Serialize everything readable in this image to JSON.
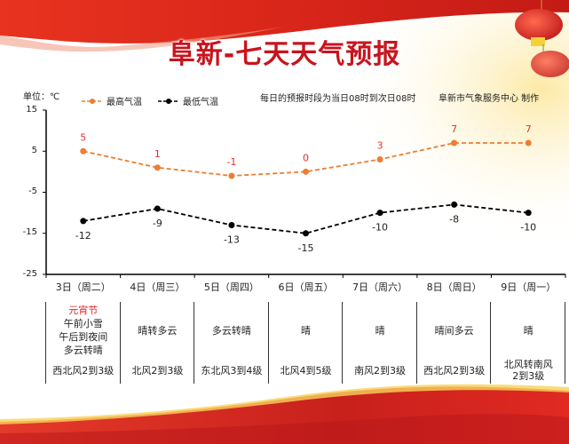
{
  "header": {
    "title": "阜新-七天天气预报"
  },
  "chart_data": {
    "type": "line",
    "title": "阜新-七天天气预报",
    "ylabel": "单位：℃",
    "ylim": [
      -25,
      15
    ],
    "yticks": [
      "15",
      "5",
      "-5",
      "-15",
      "-25"
    ],
    "categories": [
      "3日（周二）",
      "4日（周三）",
      "5日（周四）",
      "6日（周五）",
      "7日（周六）",
      "8日（周日）",
      "9日（周一）"
    ],
    "series": [
      {
        "name": "最高气温",
        "values": [
          5,
          1,
          -1,
          0,
          3,
          7,
          7
        ],
        "color": "#ed7d31",
        "style": "dashed"
      },
      {
        "name": "最低气温",
        "values": [
          -12,
          -9,
          -13,
          -15,
          -10,
          -8,
          -10
        ],
        "color": "#000000",
        "style": "dashed"
      }
    ],
    "legend_position": "top",
    "grid": false
  },
  "legend": {
    "high_label": "最高气温",
    "low_label": "最低气温"
  },
  "unit_label": "单位：℃",
  "note": "每日的预报时段为当日08时到次日08时",
  "credit": "阜新市气象服务中心 制作",
  "colors": {
    "high": "#ed7d31",
    "low": "#000000",
    "high_label": "#e03030",
    "brand_red": "#d7261e"
  },
  "days": [
    {
      "date": "3日（周二）",
      "festival": "元宵节",
      "weather": [
        "午前小雪",
        "午后到夜间",
        "多云转晴"
      ],
      "wind": [
        "西北风2到3级"
      ]
    },
    {
      "date": "4日（周三）",
      "festival": "",
      "weather": [
        "晴转多云"
      ],
      "wind": [
        "北风2到3级"
      ]
    },
    {
      "date": "5日（周四）",
      "festival": "",
      "weather": [
        "多云转晴"
      ],
      "wind": [
        "东北风3到4级"
      ]
    },
    {
      "date": "6日（周五）",
      "festival": "",
      "weather": [
        "晴"
      ],
      "wind": [
        "北风4到5级"
      ]
    },
    {
      "date": "7日（周六）",
      "festival": "",
      "weather": [
        "晴"
      ],
      "wind": [
        "南风2到3级"
      ]
    },
    {
      "date": "8日（周日）",
      "festival": "",
      "weather": [
        "晴间多云"
      ],
      "wind": [
        "西北风2到3级"
      ]
    },
    {
      "date": "9日（周一）",
      "festival": "",
      "weather": [
        "晴"
      ],
      "wind": [
        "北风转南风",
        "2到3级"
      ]
    }
  ]
}
